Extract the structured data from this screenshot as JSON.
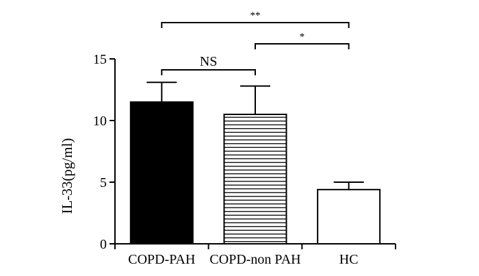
{
  "chart_data": {
    "type": "bar",
    "categories": [
      "COPD-PAH",
      "COPD-non PAH",
      "HC"
    ],
    "values": [
      11.5,
      10.5,
      4.4
    ],
    "errors": [
      1.6,
      2.3,
      0.6
    ],
    "fills": [
      "solid",
      "hlines",
      "empty"
    ],
    "ylabel": "IL-33(pg/ml)",
    "xlabel": "",
    "ylim": [
      0,
      15
    ],
    "yticks": [
      0,
      5,
      10,
      15
    ],
    "grid": false,
    "significance": [
      {
        "from": 0,
        "to": 1,
        "label": "NS"
      },
      {
        "from": 1,
        "to": 2,
        "label": "*"
      },
      {
        "from": 0,
        "to": 2,
        "label": "**"
      }
    ],
    "colors": {
      "bar_fill": "#000000",
      "bar_stroke": "#000000",
      "background": "#ffffff"
    }
  }
}
